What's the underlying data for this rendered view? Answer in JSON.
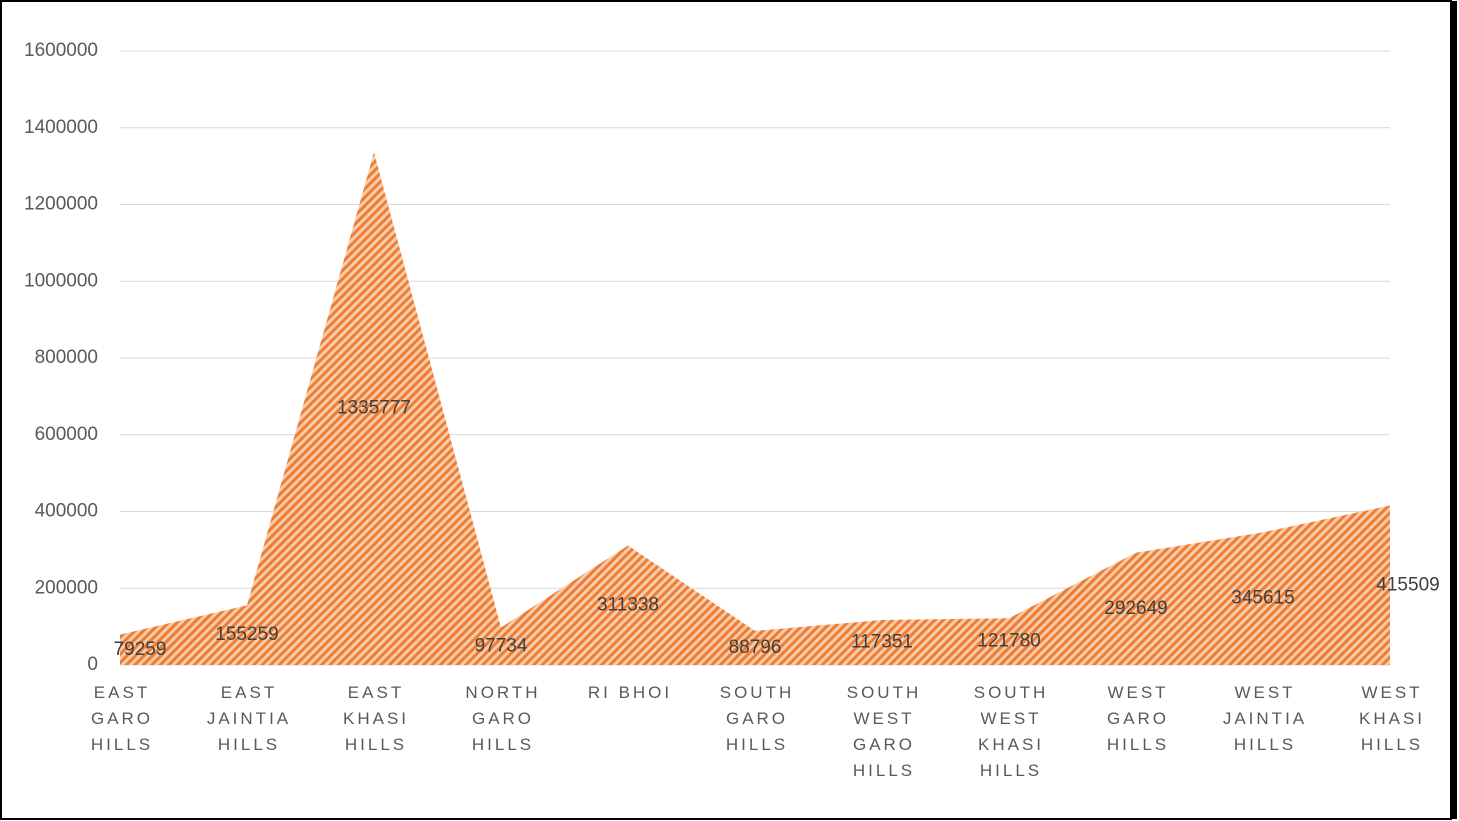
{
  "chart_data": {
    "type": "area",
    "categories": [
      "EAST GARO HILLS",
      "EAST JAINTIA HILLS",
      "EAST KHASI HILLS",
      "NORTH GARO HILLS",
      "RI BHOI",
      "SOUTH GARO HILLS",
      "SOUTH WEST GARO HILLS",
      "SOUTH WEST KHASI HILLS",
      "WEST GARO HILLS",
      "WEST JAINTIA HILLS",
      "WEST KHASI HILLS"
    ],
    "values": [
      79259,
      155259,
      1335777,
      97734,
      311338,
      88796,
      117351,
      121780,
      292649,
      345615,
      415509
    ],
    "color": "#ed7d31",
    "ylim": [
      0,
      1600000
    ],
    "yticks": [
      0,
      200000,
      400000,
      600000,
      800000,
      1000000,
      1200000,
      1400000,
      1600000
    ],
    "grid": true,
    "data_labels": true
  }
}
